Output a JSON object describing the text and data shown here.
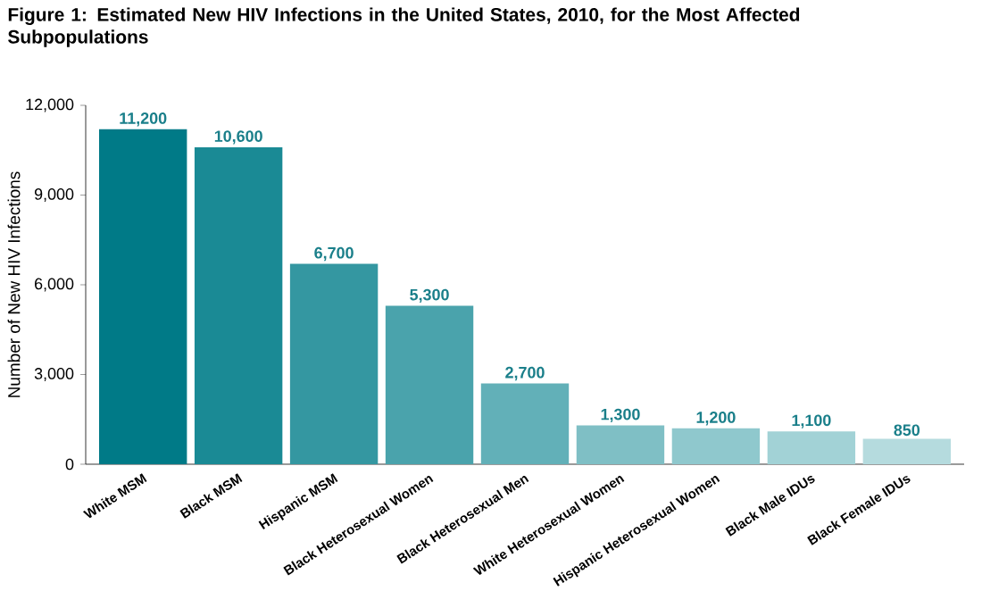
{
  "chart_data": {
    "type": "bar",
    "title": "Figure 1: Estimated New HIV Infections in the United States, 2010, for the Most Affected Subpopulations",
    "ylabel": "Number of New HIV Infections",
    "categories": [
      "White MSM",
      "Black MSM",
      "Hispanic MSM",
      "Black Heterosexual Women",
      "Black Heterosexual Men",
      "White Heterosexual Women",
      "Hispanic Heterosexual Women",
      "Black Male IDUs",
      "Black Female IDUs"
    ],
    "values": [
      11200,
      10600,
      6700,
      5300,
      2700,
      1300,
      1200,
      1100,
      850
    ],
    "value_labels": [
      "11,200",
      "10,600",
      "6,700",
      "5,300",
      "2,700",
      "1,300",
      "1,200",
      "1,100",
      "850"
    ],
    "colors": [
      "#007a87",
      "#1a8a95",
      "#3497a1",
      "#4aa3ac",
      "#62b0b8",
      "#7fbfc5",
      "#8fc8cd",
      "#a2d2d6",
      "#b5dbde"
    ],
    "ylim": [
      0,
      12000
    ],
    "yticks": [
      0,
      {
        "value": 3000,
        "label": "3,000"
      },
      {
        "value": 6000,
        "label": "6,000"
      },
      {
        "value": 9000,
        "label": "9,000"
      },
      {
        "value": 12000,
        "label": "12,000"
      }
    ]
  }
}
